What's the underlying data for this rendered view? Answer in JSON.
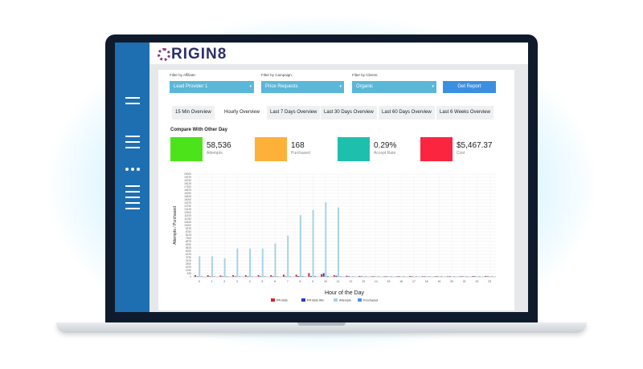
{
  "logo": {
    "text": "RIGIN8"
  },
  "filters": {
    "affiliate": {
      "label": "Filter by Affiliate:",
      "value": "Lead Provider 1"
    },
    "campaign": {
      "label": "Filter by Campaign:",
      "value": "Price Requests"
    },
    "clients": {
      "label": "Filter by Clients:",
      "value": "Organic"
    },
    "report_button": "Get Report"
  },
  "tabs": [
    {
      "label": "15 Min Overview",
      "active": false
    },
    {
      "label": "Hourly Overview",
      "active": true
    },
    {
      "label": "Last 7 Days Overview",
      "active": false
    },
    {
      "label": "Last 30 Days Overview",
      "active": false
    },
    {
      "label": "Last 60 Days Overview",
      "active": false
    },
    {
      "label": "Last 6 Weeks Overview",
      "active": false
    }
  ],
  "compare": {
    "title": "Compare With Other Day",
    "kpis": [
      {
        "value": "58,536",
        "label": "Attempts",
        "color": "#4de31a"
      },
      {
        "value": "168",
        "label": "Purchased",
        "color": "#fdb139"
      },
      {
        "value": "0.29%",
        "label": "Accept Rate",
        "color": "#1fbfae"
      },
      {
        "value": "$5,467.37",
        "label": "Cost",
        "color": "#fb2540"
      }
    ]
  },
  "chart_data": {
    "type": "bar",
    "xlabel": "Hour of the Day",
    "ylabel": "Attempts / Purchased",
    "ylim": [
      0,
      20000
    ],
    "yticks": [
      0,
      625,
      1250,
      1875,
      2500,
      3125,
      3750,
      4375,
      5000,
      5625,
      6250,
      6875,
      7500,
      8125,
      8750,
      9375,
      10000,
      10625,
      11250,
      11875,
      12500,
      13125,
      13750,
      14375,
      15000,
      15625,
      16250,
      16875,
      17500,
      18125,
      18750,
      19375,
      20000
    ],
    "categories": [
      "0",
      "1",
      "2",
      "3",
      "4",
      "5",
      "6",
      "7",
      "8",
      "9",
      "10",
      "11",
      "12",
      "13",
      "14",
      "15",
      "16",
      "17",
      "18",
      "19",
      "20",
      "21",
      "22",
      "23"
    ],
    "series": [
      {
        "name": "PR Bids",
        "color": "#e02020",
        "values": [
          300,
          300,
          250,
          300,
          300,
          300,
          300,
          400,
          400,
          700,
          500,
          300,
          200,
          150,
          100,
          100,
          100,
          150,
          100,
          100,
          100,
          100,
          150,
          150
        ]
      },
      {
        "name": "PR Bids Win",
        "color": "#1f3fcf",
        "values": [
          100,
          100,
          100,
          100,
          100,
          100,
          100,
          100,
          150,
          150,
          700,
          200,
          100,
          100,
          100,
          100,
          100,
          100,
          100,
          100,
          100,
          100,
          100,
          100
        ]
      },
      {
        "name": "Attempts",
        "color": "#a8d3e6",
        "values": [
          4000,
          4000,
          3600,
          5500,
          5500,
          5500,
          6500,
          8000,
          12000,
          13000,
          14500,
          13500,
          0,
          0,
          0,
          0,
          0,
          0,
          0,
          0,
          0,
          0,
          0,
          0
        ]
      },
      {
        "name": "Purchased",
        "color": "#4a93e0",
        "values": [
          100,
          100,
          100,
          100,
          100,
          100,
          100,
          100,
          150,
          150,
          150,
          100,
          100,
          100,
          100,
          100,
          100,
          100,
          100,
          100,
          100,
          100,
          100,
          100
        ]
      }
    ]
  }
}
